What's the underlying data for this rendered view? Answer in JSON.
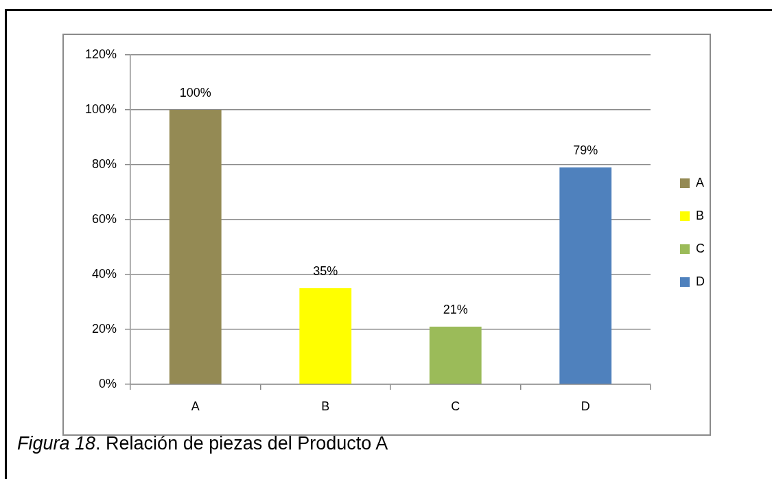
{
  "chart_data": {
    "type": "bar",
    "categories": [
      "A",
      "B",
      "C",
      "D"
    ],
    "series": [
      {
        "name": "A",
        "color": "#948a54",
        "values": [
          100,
          null,
          null,
          null
        ],
        "value_labels": [
          "100%",
          null,
          null,
          null
        ]
      },
      {
        "name": "B",
        "color": "#ffff00",
        "values": [
          null,
          35,
          null,
          null
        ],
        "value_labels": [
          null,
          "35%",
          null,
          null
        ]
      },
      {
        "name": "C",
        "color": "#9bbb59",
        "values": [
          null,
          null,
          21,
          null
        ],
        "value_labels": [
          null,
          null,
          "21%",
          null
        ]
      },
      {
        "name": "D",
        "color": "#4f81bd",
        "values": [
          null,
          null,
          null,
          79
        ],
        "value_labels": [
          null,
          null,
          null,
          "79%"
        ]
      }
    ],
    "ylim": [
      0,
      120
    ],
    "yticks": [
      {
        "value": 0,
        "label": "0%"
      },
      {
        "value": 20,
        "label": "20%"
      },
      {
        "value": 40,
        "label": "40%"
      },
      {
        "value": 60,
        "label": "60%"
      },
      {
        "value": 80,
        "label": "80%"
      },
      {
        "value": 100,
        "label": "100%"
      },
      {
        "value": 120,
        "label": "120%"
      }
    ],
    "grid": "y",
    "legend": "right",
    "annotations": [
      "Figura 18. Relación de piezas del Producto A"
    ]
  }
}
